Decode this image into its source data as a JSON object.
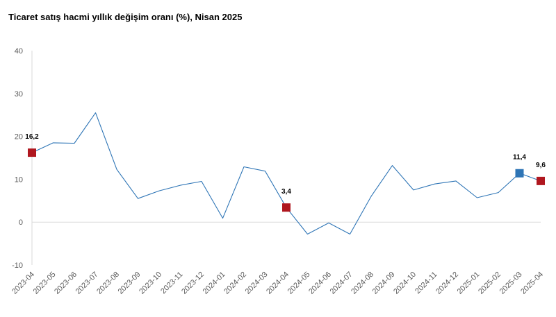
{
  "chart_data": {
    "type": "line",
    "title": "Ticaret satış hacmi yıllık değişim oranı (%), Nisan 2025",
    "xlabel": "",
    "ylabel": "",
    "ylim": [
      -10,
      40
    ],
    "y_ticks": [
      "-10",
      "0",
      "10",
      "20",
      "30",
      "40"
    ],
    "grid": "zero-line only",
    "legend": "none",
    "categories": [
      "2023-04",
      "2023-05",
      "2023-06",
      "2023-07",
      "2023-08",
      "2023-09",
      "2023-10",
      "2023-11",
      "2023-12",
      "2024-01",
      "2024-02",
      "2024-03",
      "2024-04",
      "2024-05",
      "2024-06",
      "2024-07",
      "2024-08",
      "2024-09",
      "2024-10",
      "2024-11",
      "2024-12",
      "2025-01",
      "2025-02",
      "2025-03",
      "2025-04"
    ],
    "series": [
      {
        "values": [
          16.2,
          18.5,
          18.4,
          25.5,
          12.3,
          5.5,
          7.3,
          8.6,
          9.5,
          0.9,
          12.9,
          11.9,
          3.4,
          -2.8,
          -0.2,
          -2.8,
          6.0,
          13.2,
          7.5,
          8.9,
          9.6,
          5.7,
          6.9,
          11.4,
          9.6
        ],
        "color": "#2E75B6"
      }
    ],
    "highlighted_points": [
      {
        "category": "2023-04",
        "label": "16,2",
        "color": "#B0171F"
      },
      {
        "category": "2024-04",
        "label": "3,4",
        "color": "#B0171F"
      },
      {
        "category": "2025-03",
        "label": "11,4",
        "color": "#2E75B6"
      },
      {
        "category": "2025-04",
        "label": "9,6",
        "color": "#B0171F"
      }
    ],
    "colors": {
      "line": "#2E75B6",
      "marker_red": "#B0171F",
      "marker_blue": "#2E75B6",
      "axis": "#D9D9D9",
      "tick_text": "#595959"
    }
  }
}
